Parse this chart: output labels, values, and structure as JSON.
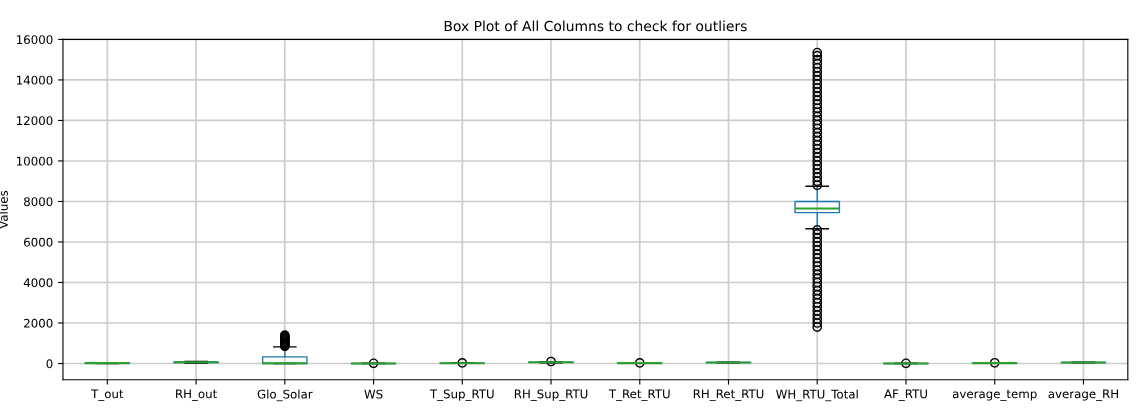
{
  "chart_data": {
    "type": "box",
    "title": "Box Plot of All Columns to check for outliers",
    "ylabel": "Values",
    "categories": [
      "T_out",
      "RH_out",
      "Glo_Solar",
      "WS",
      "T_Sup_RTU",
      "RH_Sup_RTU",
      "T_Ret_RTU",
      "RH_Ret_RTU",
      "WH_RTU_Total",
      "AF_RTU",
      "average_temp",
      "average_RH"
    ],
    "series": [
      {
        "color": "#1f77b4",
        "boxes": [
          {
            "low": 0,
            "q1": 10,
            "median": 20,
            "q3": 25,
            "high": 40
          },
          {
            "low": 20,
            "q1": 50,
            "median": 60,
            "q3": 75,
            "high": 100
          },
          {
            "low": 0,
            "q1": 0,
            "median": 10,
            "q3": 330,
            "high": 820,
            "outliers": [
              850,
              900,
              950,
              1000,
              1050,
              1100,
              1150,
              1200,
              1250,
              1300,
              1350,
              1400
            ]
          },
          {
            "low": 0,
            "q1": 1,
            "median": 2,
            "q3": 3,
            "high": 6,
            "outliers": [
              10
            ]
          },
          {
            "low": 10,
            "q1": 14,
            "median": 15,
            "q3": 16,
            "high": 20,
            "outliers": [
              30
            ]
          },
          {
            "low": 40,
            "q1": 55,
            "median": 60,
            "q3": 65,
            "high": 80,
            "outliers": [
              100
            ]
          },
          {
            "low": 15,
            "q1": 19,
            "median": 20,
            "q3": 21,
            "high": 25,
            "outliers": [
              30
            ]
          },
          {
            "low": 30,
            "q1": 45,
            "median": 50,
            "q3": 55,
            "high": 70
          },
          {
            "low": 6650,
            "q1": 7450,
            "median": 7650,
            "q3": 8000,
            "high": 8750,
            "outliers": [
              1800,
              2000,
              2200,
              2400,
              2600,
              2800,
              3000,
              3200,
              3400,
              3600,
              3800,
              4000,
              4200,
              4400,
              4600,
              4800,
              5000,
              5200,
              5400,
              5600,
              5800,
              6000,
              6200,
              6400,
              6600,
              8800,
              9000,
              9200,
              9400,
              9600,
              9800,
              10000,
              10200,
              10400,
              10600,
              10800,
              11000,
              11200,
              11400,
              11600,
              11800,
              12000,
              12200,
              12400,
              12600,
              12800,
              13000,
              13200,
              13400,
              13600,
              13800,
              14000,
              14200,
              14400,
              14600,
              14800,
              15000,
              15200,
              15350
            ]
          },
          {
            "low": 0,
            "q1": 1,
            "median": 2,
            "q3": 3,
            "high": 5,
            "outliers": [
              10
            ]
          },
          {
            "low": 15,
            "q1": 19,
            "median": 20,
            "q3": 21,
            "high": 25,
            "outliers": [
              35
            ]
          },
          {
            "low": 30,
            "q1": 45,
            "median": 50,
            "q3": 55,
            "high": 70
          }
        ]
      }
    ],
    "ylim": [
      -800,
      16000
    ],
    "yticks": [
      0,
      2000,
      4000,
      6000,
      8000,
      10000,
      12000,
      14000,
      16000
    ],
    "grid": true,
    "marker": "circle"
  }
}
